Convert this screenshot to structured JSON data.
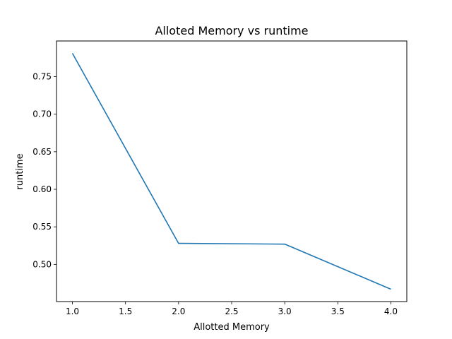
{
  "chart_data": {
    "type": "line",
    "title": "Alloted Memory vs runtime",
    "xlabel": "Allotted Memory",
    "ylabel": "runtime",
    "x": [
      1.0,
      2.0,
      3.0,
      4.0
    ],
    "series": [
      {
        "values": [
          0.781,
          0.528,
          0.527,
          0.467
        ]
      }
    ],
    "xlim": [
      0.85,
      4.15
    ],
    "ylim": [
      0.4505,
      0.7975
    ],
    "xticks": [
      1.0,
      1.5,
      2.0,
      2.5,
      3.0,
      3.5,
      4.0
    ],
    "xtick_labels": [
      "1.0",
      "1.5",
      "2.0",
      "2.5",
      "3.0",
      "3.5",
      "4.0"
    ],
    "yticks": [
      0.5,
      0.55,
      0.6,
      0.65,
      0.7,
      0.75
    ],
    "ytick_labels": [
      "0.50",
      "0.55",
      "0.60",
      "0.65",
      "0.70",
      "0.75"
    ],
    "grid": false,
    "line_color": "#1f77b4"
  }
}
